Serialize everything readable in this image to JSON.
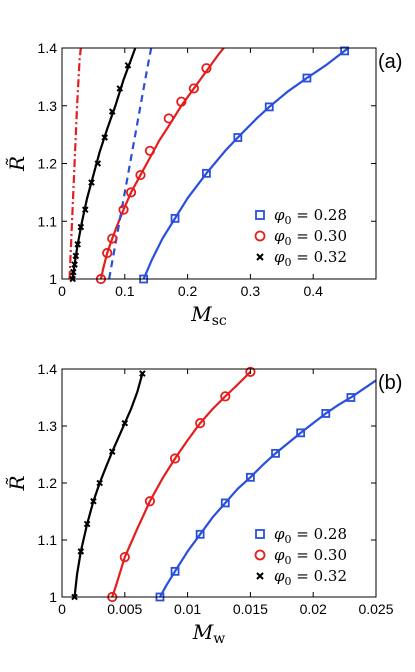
{
  "chart_data": [
    {
      "panel": "(a)",
      "type": "line",
      "xlabel": "M",
      "xlabel_sub": "sc",
      "ylabel": "R̃",
      "xlim": [
        0,
        0.5
      ],
      "ylim": [
        1,
        1.4
      ],
      "xticks": [
        "0",
        "0.1",
        "0.2",
        "0.3",
        "0.4"
      ],
      "xtick_values": [
        0,
        0.1,
        0.2,
        0.3,
        0.4
      ],
      "yticks": [
        "1",
        "1.1",
        "1.2",
        "1.3",
        "1.4"
      ],
      "ytick_values": [
        1,
        1.1,
        1.2,
        1.3,
        1.4
      ],
      "grid": false,
      "legend_position": "bottom-right",
      "series": [
        {
          "name": "φ0 = 0.28",
          "legend_var": "φ",
          "legend_sub": "0",
          "legend_value": " = 0.28",
          "color": "#2a4fdc",
          "marker": "square",
          "curve_x": [
            0.13,
            0.143,
            0.16,
            0.18,
            0.2,
            0.23,
            0.26,
            0.28,
            0.31,
            0.33,
            0.36,
            0.39,
            0.42,
            0.45,
            0.475
          ],
          "curve_y": [
            1.0,
            1.033,
            1.07,
            1.105,
            1.14,
            1.183,
            1.222,
            1.245,
            1.278,
            1.298,
            1.325,
            1.348,
            1.37,
            1.395,
            1.415
          ],
          "marker_x": [
            0.13,
            0.18,
            0.23,
            0.28,
            0.33,
            0.39,
            0.45
          ],
          "marker_y": [
            1.0,
            1.105,
            1.183,
            1.245,
            1.298,
            1.348,
            1.395
          ]
        },
        {
          "name": "φ0 = 0.30",
          "legend_var": "φ",
          "legend_sub": "0",
          "legend_value": " = 0.30",
          "color": "#e51d1d",
          "marker": "circle",
          "curve_x": [
            0.062,
            0.066,
            0.072,
            0.08,
            0.088,
            0.098,
            0.11,
            0.125,
            0.14,
            0.155,
            0.17,
            0.19,
            0.21,
            0.23,
            0.25,
            0.265
          ],
          "curve_y": [
            1.0,
            1.02,
            1.045,
            1.07,
            1.093,
            1.12,
            1.15,
            1.18,
            1.21,
            1.24,
            1.265,
            1.3,
            1.33,
            1.36,
            1.39,
            1.41
          ],
          "marker_x": [
            0.062,
            0.072,
            0.08,
            0.098,
            0.11,
            0.125,
            0.14,
            0.17,
            0.19,
            0.21,
            0.23
          ],
          "marker_y": [
            1.0,
            1.045,
            1.07,
            1.12,
            1.15,
            1.18,
            1.222,
            1.278,
            1.307,
            1.33,
            1.365
          ]
        },
        {
          "name": "φ0 = 0.32",
          "legend_var": "φ",
          "legend_sub": "0",
          "legend_value": " = 0.32",
          "color": "#000000",
          "marker": "cross",
          "curve_x": [
            0.017,
            0.02,
            0.025,
            0.032,
            0.04,
            0.05,
            0.06,
            0.072,
            0.085,
            0.098,
            0.11,
            0.12
          ],
          "curve_y": [
            1.0,
            1.025,
            1.06,
            1.1,
            1.14,
            1.18,
            1.22,
            1.26,
            1.3,
            1.345,
            1.38,
            1.41
          ],
          "marker_x": [
            0.017,
            0.018,
            0.02,
            0.022,
            0.025,
            0.03,
            0.037,
            0.047,
            0.057,
            0.068,
            0.08,
            0.092,
            0.105
          ],
          "marker_y": [
            1.0,
            1.012,
            1.025,
            1.04,
            1.06,
            1.09,
            1.12,
            1.167,
            1.2,
            1.245,
            1.29,
            1.33,
            1.37
          ]
        },
        {
          "name": "",
          "color": "#e51d1d",
          "marker": "none",
          "dash": "dashdot",
          "curve_x": [
            0.012,
            0.016,
            0.02,
            0.024,
            0.028,
            0.031
          ],
          "curve_y": [
            1.0,
            1.1,
            1.2,
            1.3,
            1.38,
            1.41
          ],
          "marker_x": [],
          "marker_y": []
        },
        {
          "name": "",
          "color": "#2a4fdc",
          "marker": "none",
          "dash": "dashed",
          "curve_x": [
            0.075,
            0.085,
            0.095,
            0.105,
            0.115,
            0.125,
            0.135,
            0.142
          ],
          "curve_y": [
            1.0,
            1.06,
            1.12,
            1.18,
            1.24,
            1.3,
            1.36,
            1.4
          ],
          "marker_x": [],
          "marker_y": []
        }
      ]
    },
    {
      "panel": "(b)",
      "type": "line",
      "xlabel": "M",
      "xlabel_sub": "w",
      "ylabel": "R̃",
      "xlim": [
        0,
        0.025
      ],
      "ylim": [
        1,
        1.4
      ],
      "xticks": [
        "0",
        "0.005",
        "0.01",
        "0.015",
        "0.02",
        "0.025"
      ],
      "xtick_values": [
        0,
        0.005,
        0.01,
        0.015,
        0.02,
        0.025
      ],
      "yticks": [
        "1",
        "1.1",
        "1.2",
        "1.3",
        "1.4"
      ],
      "ytick_values": [
        1,
        1.1,
        1.2,
        1.3,
        1.4
      ],
      "grid": false,
      "legend_position": "bottom-right",
      "series": [
        {
          "name": "φ0 = 0.28",
          "legend_var": "φ",
          "legend_sub": "0",
          "legend_value": " = 0.28",
          "color": "#2a4fdc",
          "marker": "square",
          "curve_x": [
            0.0078,
            0.0083,
            0.009,
            0.01,
            0.011,
            0.012,
            0.013,
            0.014,
            0.015,
            0.016,
            0.017,
            0.018,
            0.019,
            0.02,
            0.021,
            0.022,
            0.023,
            0.024,
            0.025
          ],
          "curve_y": [
            1.0,
            1.02,
            1.045,
            1.08,
            1.11,
            1.14,
            1.165,
            1.19,
            1.21,
            1.232,
            1.252,
            1.27,
            1.288,
            1.305,
            1.322,
            1.337,
            1.35,
            1.365,
            1.38
          ],
          "marker_x": [
            0.0078,
            0.009,
            0.011,
            0.013,
            0.015,
            0.017,
            0.019,
            0.021,
            0.023
          ],
          "marker_y": [
            1.0,
            1.045,
            1.11,
            1.165,
            1.21,
            1.252,
            1.288,
            1.322,
            1.35
          ]
        },
        {
          "name": "φ0 = 0.30",
          "legend_var": "φ",
          "legend_sub": "0",
          "legend_value": " = 0.30",
          "color": "#e51d1d",
          "marker": "circle",
          "curve_x": [
            0.004,
            0.0043,
            0.005,
            0.006,
            0.007,
            0.008,
            0.009,
            0.01,
            0.011,
            0.012,
            0.013,
            0.014,
            0.015
          ],
          "curve_y": [
            1.0,
            1.02,
            1.07,
            1.12,
            1.168,
            1.208,
            1.243,
            1.275,
            1.305,
            1.33,
            1.352,
            1.373,
            1.395
          ],
          "marker_x": [
            0.004,
            0.005,
            0.007,
            0.009,
            0.011,
            0.013,
            0.015
          ],
          "marker_y": [
            1.0,
            1.07,
            1.168,
            1.243,
            1.305,
            1.352,
            1.395
          ]
        },
        {
          "name": "φ0 = 0.32",
          "legend_var": "φ",
          "legend_sub": "0",
          "legend_value": " = 0.32",
          "color": "#000000",
          "marker": "cross",
          "curve_x": [
            0.001,
            0.0012,
            0.0015,
            0.002,
            0.0025,
            0.003,
            0.0035,
            0.004,
            0.0045,
            0.005,
            0.0055,
            0.006,
            0.0064
          ],
          "curve_y": [
            1.0,
            1.04,
            1.08,
            1.128,
            1.168,
            1.2,
            1.228,
            1.255,
            1.28,
            1.305,
            1.33,
            1.36,
            1.392
          ],
          "marker_x": [
            0.001,
            0.0015,
            0.002,
            0.0025,
            0.003,
            0.004,
            0.005,
            0.0064
          ],
          "marker_y": [
            1.0,
            1.08,
            1.128,
            1.168,
            1.2,
            1.255,
            1.305,
            1.392
          ]
        }
      ]
    }
  ]
}
